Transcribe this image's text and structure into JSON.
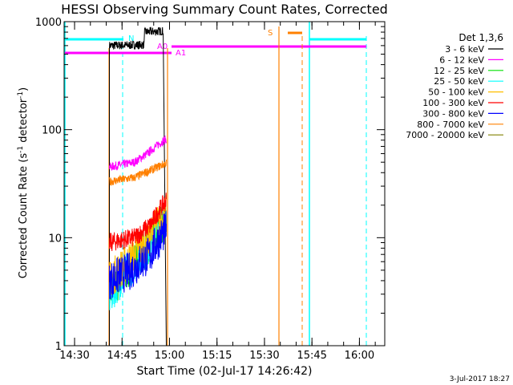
{
  "chart_data": {
    "type": "line",
    "title": "HESSI Observing Summary Count Rates, Corrected",
    "xlabel": "Start Time (02-Jul-17 14:26:42)",
    "ylabel_parts": [
      "Corrected Count Rate (s",
      "-1",
      " detector",
      "-1",
      ")"
    ],
    "ylog": true,
    "ylim": [
      1,
      1000
    ],
    "xlim_minutes": [
      "14:26:42",
      "16:08:00"
    ],
    "yticks": [
      {
        "value": 1,
        "label": "1"
      },
      {
        "value": 10,
        "label": "10"
      },
      {
        "value": 100,
        "label": "100"
      },
      {
        "value": 1000,
        "label": "1000"
      }
    ],
    "xticks": [
      {
        "time": "14:30",
        "label": "14:30"
      },
      {
        "time": "14:45",
        "label": "14:45"
      },
      {
        "time": "15:00",
        "label": "15:00"
      },
      {
        "time": "15:15",
        "label": "15:15"
      },
      {
        "time": "15:30",
        "label": "15:30"
      },
      {
        "time": "15:45",
        "label": "15:45"
      },
      {
        "time": "16:00",
        "label": "16:00"
      }
    ],
    "legend_title": "Det 1,3,6",
    "legend_placement": "right",
    "series": [
      {
        "name": "3 - 6 keV",
        "color": "#000000",
        "points": [
          [
            "14:41",
            600
          ],
          [
            "14:52",
            610
          ],
          [
            "14:52",
            800
          ],
          [
            "14:58",
            820
          ]
        ]
      },
      {
        "name": "6 - 12 keV",
        "color": "#ff00ff",
        "points": [
          [
            "14:41",
            45
          ],
          [
            "14:49",
            50
          ],
          [
            "14:53",
            60
          ],
          [
            "14:59",
            82
          ]
        ]
      },
      {
        "name": "12 - 25 keV",
        "color": "#00e000",
        "points": [
          [
            "14:41",
            3
          ],
          [
            "14:47",
            5
          ],
          [
            "14:53",
            8
          ],
          [
            "14:59",
            15
          ]
        ]
      },
      {
        "name": "25 - 50 keV",
        "color": "#00ffff",
        "points": [
          [
            "14:41",
            2.8
          ],
          [
            "14:47",
            5
          ],
          [
            "14:53",
            8
          ],
          [
            "14:59",
            16
          ]
        ]
      },
      {
        "name": "50 - 100 keV",
        "color": "#ffbf00",
        "points": [
          [
            "14:41",
            4
          ],
          [
            "14:47",
            6
          ],
          [
            "14:53",
            9
          ],
          [
            "14:59",
            17
          ]
        ]
      },
      {
        "name": "100 - 300 keV",
        "color": "#ff0000",
        "points": [
          [
            "14:41",
            9
          ],
          [
            "14:49",
            10
          ],
          [
            "14:54",
            13
          ],
          [
            "14:59",
            22
          ]
        ]
      },
      {
        "name": "300 - 800 keV",
        "color": "#0000ff",
        "points": [
          [
            "14:41",
            4
          ],
          [
            "14:48",
            5
          ],
          [
            "14:54",
            7
          ],
          [
            "14:59",
            12
          ]
        ]
      },
      {
        "name": "800 - 7000 keV",
        "color": "#ff8000",
        "points": [
          [
            "14:41",
            33
          ],
          [
            "14:49",
            36
          ],
          [
            "14:54",
            42
          ],
          [
            "14:59",
            49
          ]
        ]
      },
      {
        "name": "7000 - 20000 keV",
        "color": "#808000",
        "points": []
      }
    ],
    "annotations": [
      {
        "label": "N",
        "color": "#00ffff"
      },
      {
        "label": "A0",
        "color": "#ff00ff"
      },
      {
        "label": "A1",
        "color": "#ff00ff"
      },
      {
        "label": "S",
        "color": "#ff8000"
      }
    ],
    "date_stamp": "3-Jul-2017 18:27"
  }
}
